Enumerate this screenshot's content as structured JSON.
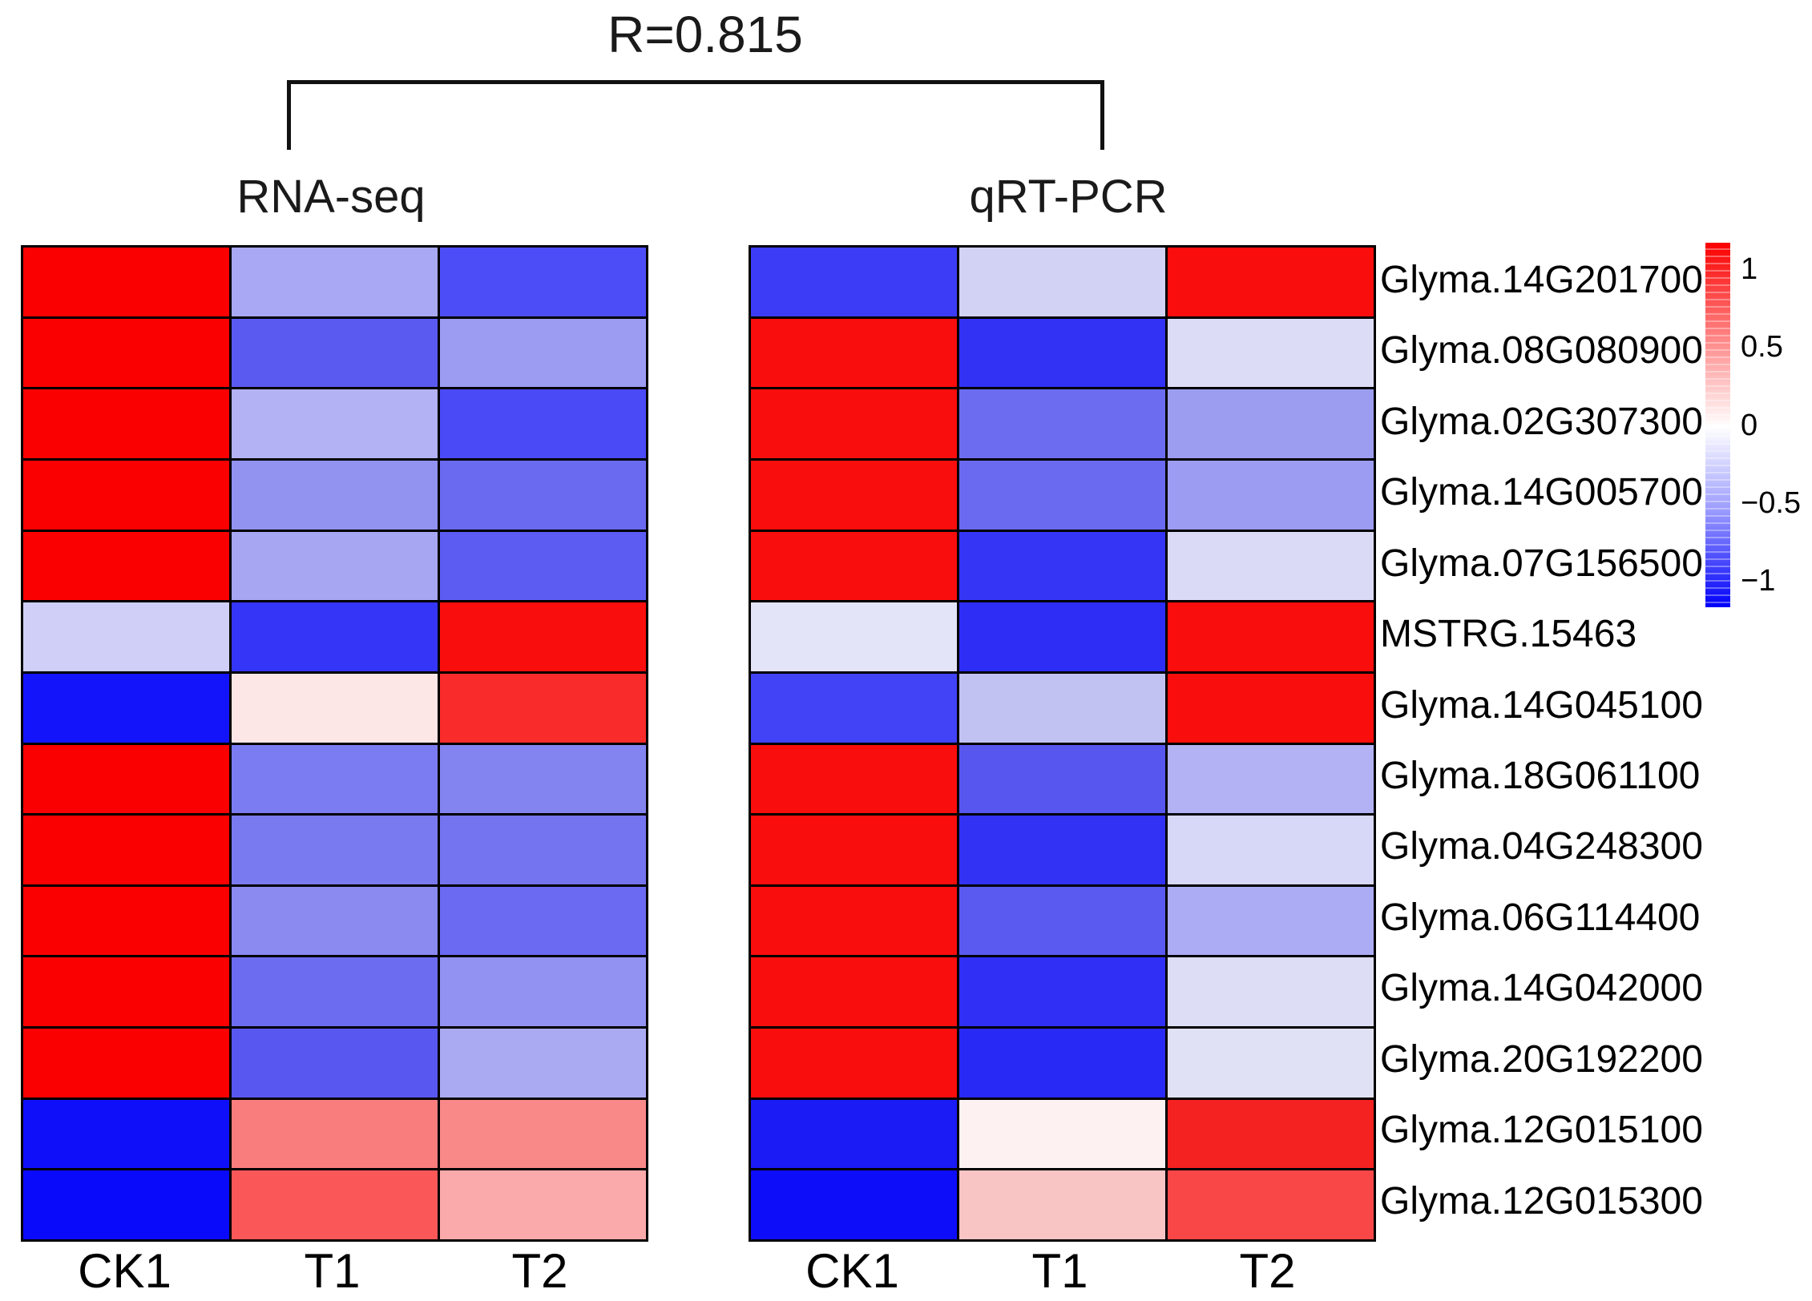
{
  "chart_data": {
    "type": "heatmap",
    "correlation_label": "R=0.815",
    "rows": [
      "Glyma.14G201700",
      "Glyma.08G080900",
      "Glyma.02G307300",
      "Glyma.14G005700",
      "Glyma.07G156500",
      "MSTRG.15463",
      "Glyma.14G045100",
      "Glyma.18G061100",
      "Glyma.04G248300",
      "Glyma.06G114400",
      "Glyma.14G042000",
      "Glyma.20G192200",
      "Glyma.12G015100",
      "Glyma.12G015300"
    ],
    "columns": [
      "CK1",
      "T1",
      "T2"
    ],
    "series": [
      {
        "name": "RNA-seq",
        "values": [
          [
            1.15,
            -0.4,
            -0.82
          ],
          [
            1.15,
            -0.75,
            -0.46
          ],
          [
            1.15,
            -0.36,
            -0.84
          ],
          [
            1.15,
            -0.51,
            -0.7
          ],
          [
            1.15,
            -0.42,
            -0.74
          ],
          [
            -0.22,
            -0.92,
            1.12
          ],
          [
            -1.08,
            0.11,
            0.97
          ],
          [
            1.15,
            -0.61,
            -0.58
          ],
          [
            1.15,
            -0.62,
            -0.64
          ],
          [
            1.15,
            -0.55,
            -0.7
          ],
          [
            1.15,
            -0.69,
            -0.51
          ],
          [
            1.15,
            -0.76,
            -0.39
          ],
          [
            -1.1,
            0.59,
            0.54
          ],
          [
            -1.13,
            0.76,
            0.39
          ]
        ],
        "colors": [
          [
            "#FA0000",
            "#A8A8F5",
            "#4D4DF7"
          ],
          [
            "#FA0000",
            "#5A5AF0",
            "#9C9CF2"
          ],
          [
            "#FA0000",
            "#B2B2F5",
            "#4A4AF7"
          ],
          [
            "#FA0000",
            "#9292F0",
            "#6A6AF0"
          ],
          [
            "#FA0000",
            "#A6A6F3",
            "#5C5CF2"
          ],
          [
            "#CFCFF7",
            "#3535F7",
            "#FA0D0D"
          ],
          [
            "#1414FA",
            "#FDE6E6",
            "#FA2B2B"
          ],
          [
            "#FA0000",
            "#7C7CF2",
            "#8484F0"
          ],
          [
            "#FA0000",
            "#7A7AF0",
            "#7474F0"
          ],
          [
            "#FA0000",
            "#8A8AF0",
            "#6A6AF2"
          ],
          [
            "#FA0000",
            "#6C6CF0",
            "#9292F2"
          ],
          [
            "#FA0000",
            "#5858F0",
            "#AAAAF2"
          ],
          [
            "#0F0FFA",
            "#F97D7D",
            "#F98888"
          ],
          [
            "#0A0AFA",
            "#FA5858",
            "#FAAAAA"
          ]
        ]
      },
      {
        "name": "qRT-PCR",
        "values": [
          [
            -0.89,
            -0.21,
            1.12
          ],
          [
            1.12,
            -0.94,
            -0.17
          ],
          [
            1.12,
            -0.67,
            -0.46
          ],
          [
            1.12,
            -0.68,
            -0.46
          ],
          [
            1.12,
            -0.92,
            -0.19
          ],
          [
            -0.13,
            -0.95,
            1.12
          ],
          [
            -0.86,
            -0.28,
            1.12
          ],
          [
            1.12,
            -0.76,
            -0.36
          ],
          [
            1.12,
            -0.94,
            -0.19
          ],
          [
            1.12,
            -0.74,
            -0.38
          ],
          [
            1.12,
            -0.95,
            -0.16
          ],
          [
            1.12,
            -0.97,
            -0.14
          ],
          [
            -1.03,
            0.06,
            1.0
          ],
          [
            -1.12,
            0.25,
            0.82
          ]
        ],
        "colors": [
          [
            "#3C3CF7",
            "#D2D2F5",
            "#FA0D0D"
          ],
          [
            "#FA0D0D",
            "#3232F5",
            "#DCDCF7"
          ],
          [
            "#FA0D0D",
            "#6C6CF0",
            "#9C9CF0"
          ],
          [
            "#FA0D0D",
            "#6A6AF0",
            "#9C9CF2"
          ],
          [
            "#FA0D0D",
            "#3535F5",
            "#DADAF7"
          ],
          [
            "#E4E4F8",
            "#2D2DF5",
            "#FA0D0D"
          ],
          [
            "#4242F7",
            "#C2C2F2",
            "#FA0D0D"
          ],
          [
            "#FA0D0D",
            "#5757F0",
            "#B2B2F5"
          ],
          [
            "#FA0D0D",
            "#3232F5",
            "#D7D7F7"
          ],
          [
            "#FA0D0D",
            "#5A5AF0",
            "#ACACF5"
          ],
          [
            "#FA0D0D",
            "#2F2FF5",
            "#DDDDF5"
          ],
          [
            "#FA0D0D",
            "#2929F5",
            "#E1E1F5"
          ],
          [
            "#1B1BF5",
            "#FDF1F1",
            "#F52222"
          ],
          [
            "#0D0DFA",
            "#F9C4C4",
            "#F94747"
          ]
        ]
      }
    ],
    "colorbar": {
      "tick_labels": [
        "1",
        "0.5",
        "0",
        "−0.5",
        "−1"
      ],
      "tick_values": [
        1,
        0.5,
        0,
        -0.5,
        -1
      ],
      "value_range": [
        -1.17,
        1.17
      ],
      "max_color": "#FA0000",
      "mid_color": "#FFFFFF",
      "min_color": "#0000FA"
    },
    "legend_position": "right",
    "grid": false
  }
}
